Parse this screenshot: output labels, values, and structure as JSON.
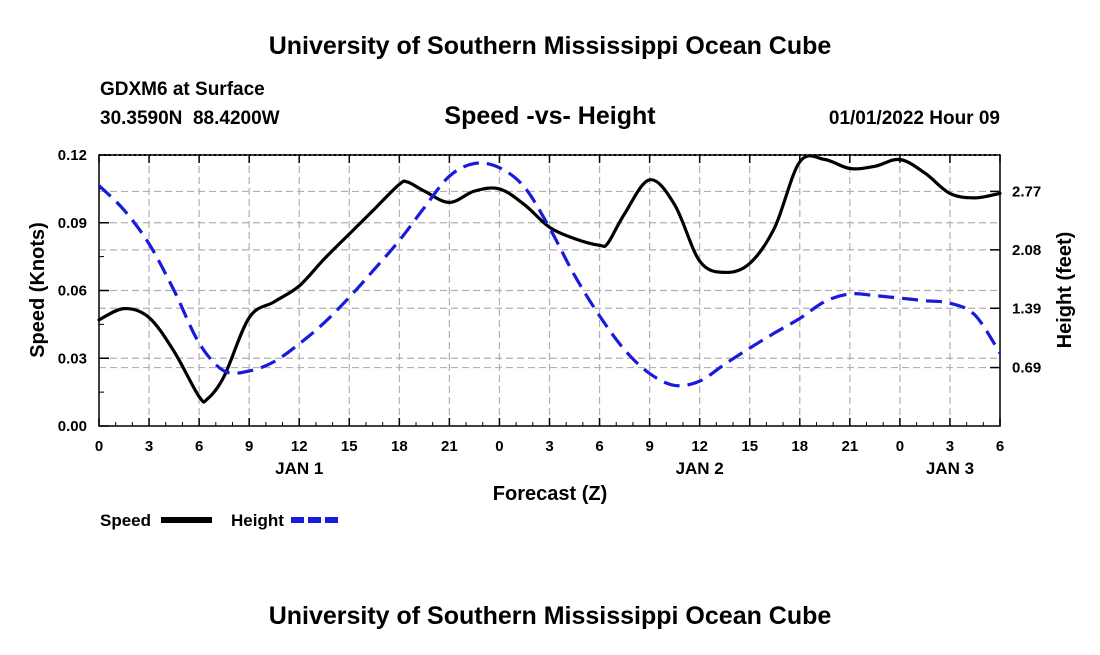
{
  "header": {
    "title": "University of Southern Mississippi Ocean Cube",
    "station": "GDXM6 at Surface",
    "location": "30.3590N  88.4200W",
    "datetime": "01/01/2022 Hour 09"
  },
  "footer": {
    "title": "University of Southern Mississippi Ocean Cube"
  },
  "chart_data": {
    "type": "line",
    "title": "Speed -vs- Height",
    "xlabel": "Forecast (Z)",
    "ylabel_left": "Speed (Knots)",
    "ylabel_right": "Height (feet)",
    "grid": true,
    "x_unit": "forecast hours from 00Z Jan 1",
    "xlim": [
      0,
      54
    ],
    "ylim_left": [
      0,
      0.12
    ],
    "ylim_right": [
      0,
      3.2
    ],
    "x_ticks": [
      0,
      3,
      6,
      9,
      12,
      15,
      18,
      21,
      24,
      27,
      30,
      33,
      36,
      39,
      42,
      45,
      48,
      51,
      54
    ],
    "x_tick_labels": [
      "0",
      "3",
      "6",
      "9",
      "12",
      "15",
      "18",
      "21",
      "0",
      "3",
      "6",
      "9",
      "12",
      "15",
      "18",
      "21",
      "0",
      "3",
      "6"
    ],
    "date_labels": [
      {
        "x": 12,
        "label": "JAN 1"
      },
      {
        "x": 36,
        "label": "JAN 2"
      },
      {
        "x": 51,
        "label": "JAN 3"
      }
    ],
    "y_left_ticks": [
      0,
      0.03,
      0.06,
      0.09,
      0.12
    ],
    "y_left_tick_labels": [
      "0.00",
      "0.03",
      "0.06",
      "0.09",
      "0.12"
    ],
    "y_right_ticks": [
      0.69,
      1.39,
      2.08,
      2.77
    ],
    "y_right_tick_labels": [
      "0.69",
      "1.39",
      "2.08",
      "2.77"
    ],
    "series": [
      {
        "name": "Speed",
        "axis": "left",
        "color": "#000000",
        "style": "solid",
        "x": [
          0,
          1.5,
          3,
          4.5,
          6,
          6.5,
          7.5,
          9,
          10.5,
          12,
          13.5,
          15,
          16.5,
          18,
          18.5,
          19.5,
          21,
          22.5,
          24,
          25.5,
          27,
          28.5,
          30,
          30.5,
          31.5,
          33,
          34.5,
          36,
          37.5,
          39,
          40.5,
          42,
          43.5,
          45,
          46.5,
          48,
          49.5,
          51,
          52.5,
          54
        ],
        "y": [
          0.047,
          0.052,
          0.048,
          0.033,
          0.013,
          0.012,
          0.022,
          0.048,
          0.055,
          0.062,
          0.074,
          0.085,
          0.096,
          0.107,
          0.108,
          0.104,
          0.099,
          0.104,
          0.105,
          0.098,
          0.088,
          0.083,
          0.08,
          0.081,
          0.094,
          0.109,
          0.098,
          0.073,
          0.068,
          0.072,
          0.088,
          0.117,
          0.118,
          0.114,
          0.115,
          0.118,
          0.112,
          0.103,
          0.101,
          0.103
        ]
      },
      {
        "name": "Height",
        "axis": "right",
        "color": "#1a1adb",
        "style": "dashed",
        "x": [
          0,
          1.5,
          3,
          4.5,
          6,
          7.5,
          9,
          10.5,
          12,
          13.5,
          15,
          16.5,
          18,
          19.5,
          21,
          22.5,
          24,
          25.5,
          27,
          28.5,
          30,
          31.5,
          33,
          34.5,
          36,
          37.5,
          39,
          40.5,
          42,
          43.5,
          45,
          46.5,
          48,
          49.5,
          51,
          52.5,
          54
        ],
        "y": [
          2.84,
          2.55,
          2.15,
          1.6,
          0.98,
          0.65,
          0.65,
          0.76,
          0.97,
          1.22,
          1.52,
          1.85,
          2.19,
          2.58,
          2.95,
          3.1,
          3.05,
          2.82,
          2.34,
          1.78,
          1.3,
          0.9,
          0.62,
          0.48,
          0.53,
          0.73,
          0.92,
          1.1,
          1.27,
          1.47,
          1.56,
          1.54,
          1.51,
          1.48,
          1.45,
          1.31,
          0.86
        ]
      }
    ]
  },
  "legend": {
    "position": "bottom-left",
    "items": [
      {
        "label": "Speed",
        "color": "#000000",
        "style": "solid"
      },
      {
        "label": "Height",
        "color": "#1a1adb",
        "style": "dashed"
      }
    ]
  }
}
